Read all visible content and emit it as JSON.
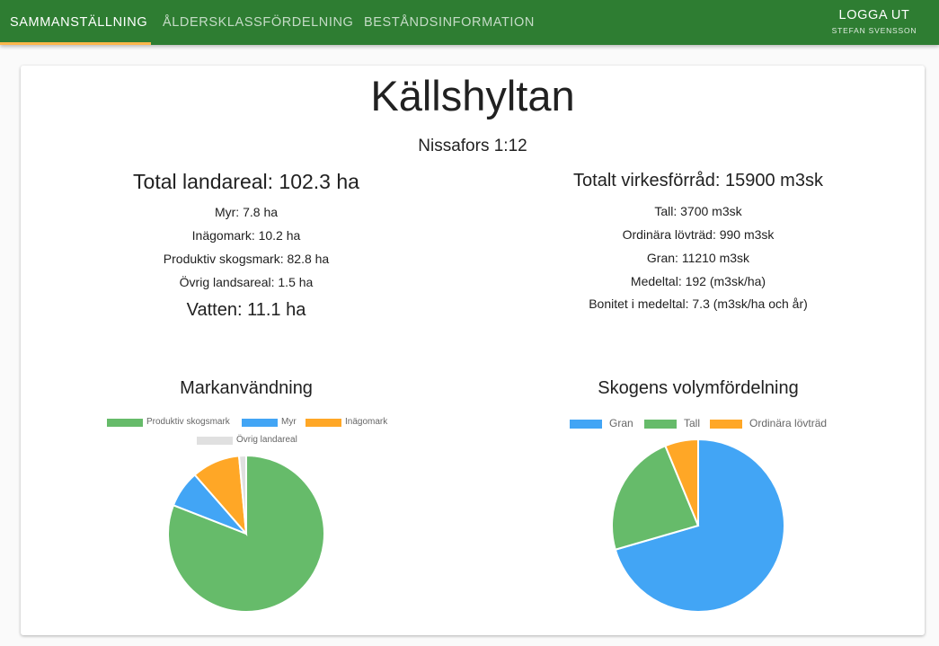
{
  "nav": {
    "tabs": [
      {
        "label": "SAMMANSTÄLLNING",
        "active": true
      },
      {
        "label": "ÅLDERSKLASSFÖRDELNING",
        "active": false
      },
      {
        "label": "BESTÅNDSINFORMATION",
        "active": false
      }
    ],
    "logout_label": "LOGGA UT",
    "user_name": "STEFAN SVENSSON",
    "colors": {
      "bar": "#2e7d32",
      "indicator": "#ffb74d"
    }
  },
  "property": {
    "name": "Källshyltan",
    "designation": "Nissafors 1:12"
  },
  "land": {
    "total": "Total landareal: 102.3 ha",
    "items": [
      "Myr: 7.8 ha",
      "Inägomark: 10.2 ha",
      "Produktiv skogsmark: 82.8 ha",
      "Övrig landsareal: 1.5 ha"
    ],
    "water": "Vatten: 11.1 ha"
  },
  "timber": {
    "total": "Totalt virkesförråd: 15900 m3sk",
    "items": [
      "Tall: 3700 m3sk",
      "Ordinära lövträd: 990 m3sk",
      "Gran: 11210 m3sk",
      "Medeltal: 192 (m3sk/ha)",
      "Bonitet i medeltal: 7.3 (m3sk/ha och år)"
    ]
  },
  "chart_data": [
    {
      "type": "pie",
      "title": "Markanvändning",
      "legend_placement": "top",
      "categories": [
        "Produktiv skogsmark",
        "Myr",
        "Inägomark",
        "Övrig landareal"
      ],
      "values": [
        82.8,
        7.8,
        10.2,
        1.5
      ],
      "colors": [
        "#66bb6a",
        "#42a5f5",
        "#ffa726",
        "#e0e0e0"
      ]
    },
    {
      "type": "pie",
      "title": "Skogens volymfördelning",
      "legend_placement": "top",
      "categories": [
        "Gran",
        "Tall",
        "Ordinära lövträd"
      ],
      "values": [
        11210,
        3700,
        990
      ],
      "colors": [
        "#42a5f5",
        "#66bb6a",
        "#ffa726"
      ]
    }
  ]
}
